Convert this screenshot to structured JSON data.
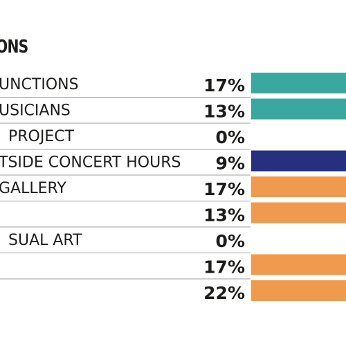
{
  "chart_data": {
    "type": "bar",
    "title": "ONS",
    "categories": [
      "UNCTIONS",
      "USICIANS",
      "PROJECT",
      "TSIDE CONCERT HOURS",
      "GALLERY",
      "",
      "SUAL ART",
      "",
      ""
    ],
    "value_labels": [
      "17%",
      "13%",
      "0%",
      "9%",
      "17%",
      "13%",
      "0%",
      "17%",
      "22%"
    ],
    "values": [
      17,
      13,
      0,
      9,
      17,
      13,
      0,
      17,
      22
    ],
    "bar_colors": [
      "#3aa89f",
      "#3aa89f",
      "#3aa89f",
      "#26307f",
      "#f09a4f",
      "#f09a4f",
      "#f09a4f",
      "#f09a4f",
      "#f09a4f"
    ],
    "unit": "%",
    "legend": "none",
    "grid": false
  }
}
